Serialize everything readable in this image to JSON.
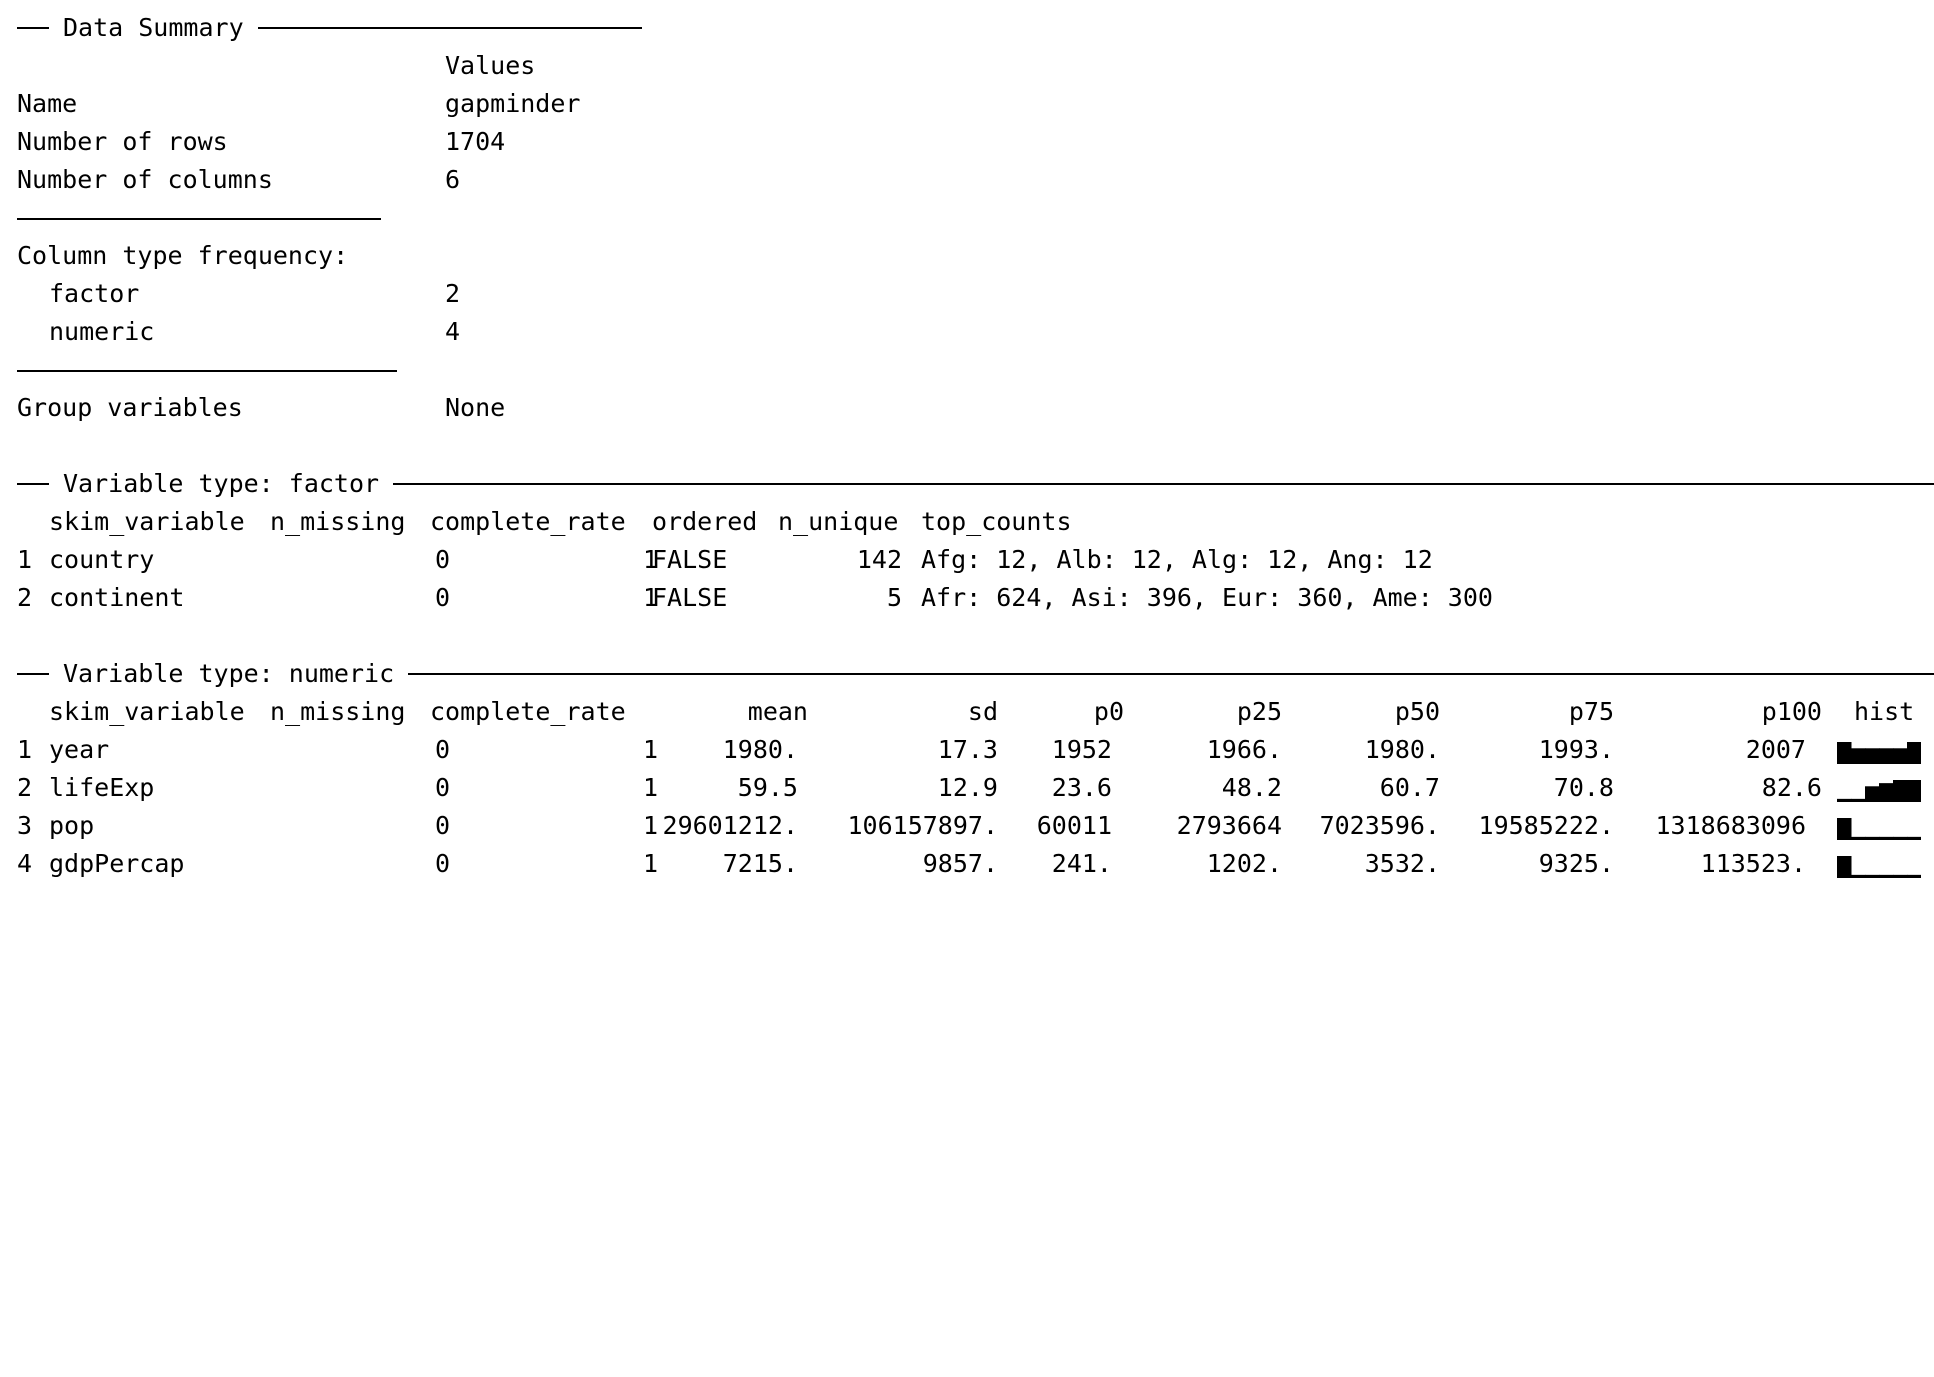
{
  "summary": {
    "title": "Data Summary",
    "values_header": "Values",
    "rows": [
      {
        "label": "Name",
        "value": "gapminder"
      },
      {
        "label": "Number of rows",
        "value": "1704"
      },
      {
        "label": "Number of columns",
        "value": "6"
      }
    ],
    "freq_title": "Column type frequency:",
    "freq": [
      {
        "label": "factor",
        "value": "2"
      },
      {
        "label": "numeric",
        "value": "4"
      }
    ],
    "group": {
      "label": "Group variables",
      "value": "None"
    }
  },
  "factor": {
    "title": "Variable type: factor",
    "headers": [
      "skim_variable",
      "n_missing",
      "complete_rate",
      "ordered",
      "n_unique",
      "top_counts"
    ],
    "rows": [
      {
        "idx": "1",
        "skim_variable": "country",
        "n_missing": "0",
        "complete_rate": "1",
        "ordered": "FALSE",
        "n_unique": "142",
        "top_counts": "Afg: 12, Alb: 12, Alg: 12, Ang: 12"
      },
      {
        "idx": "2",
        "skim_variable": "continent",
        "n_missing": "0",
        "complete_rate": "1",
        "ordered": "FALSE",
        "n_unique": "5",
        "top_counts": "Afr: 624, Asi: 396, Eur: 360, Ame: 300"
      }
    ]
  },
  "numeric": {
    "title": "Variable type: numeric",
    "headers": [
      "skim_variable",
      "n_missing",
      "complete_rate",
      "mean",
      "sd",
      "p0",
      "p25",
      "p50",
      "p75",
      "p100",
      "hist"
    ],
    "rows": [
      {
        "idx": "1",
        "skim_variable": "year",
        "n_missing": "0",
        "complete_rate": "1",
        "mean": "1980.",
        "sd": "17.3",
        "p0": "1952",
        "p25": "1966.",
        "p50": "1980.",
        "p75": "1993.",
        "p100": "2007",
        "hist": [
          7,
          5,
          5,
          5,
          5,
          7
        ],
        "hist_text": "▇▅▅▅▅▇"
      },
      {
        "idx": "2",
        "skim_variable": "lifeExp",
        "n_missing": "0",
        "complete_rate": "1",
        "mean": "59.5",
        "sd": "12.9",
        "p0": "23.6",
        "p25": "48.2",
        "p50": "60.7",
        "p75": "70.8",
        "p100": "82.6",
        "hist": [
          1,
          1,
          5,
          6,
          7,
          7
        ],
        "hist_text": "▁▁▅▆▇▇"
      },
      {
        "idx": "3",
        "skim_variable": "pop",
        "n_missing": "0",
        "complete_rate": "1",
        "mean": "29601212.",
        "sd": "106157897.",
        "p0": "60011",
        "p25": "2793664",
        "p50": "7023596.",
        "p75": "19585222.",
        "p100": "1318683096",
        "hist": [
          7,
          1,
          1,
          1,
          1,
          1
        ],
        "hist_text": "▇▁▁▁▁▁"
      },
      {
        "idx": "4",
        "skim_variable": "gdpPercap",
        "n_missing": "0",
        "complete_rate": "1",
        "mean": "7215.",
        "sd": "9857.",
        "p0": "241.",
        "p25": "1202.",
        "p50": "3532.",
        "p75": "9325.",
        "p100": "113523.",
        "hist": [
          7,
          1,
          1,
          1,
          1,
          1
        ],
        "hist_text": "▇▁▁▁▁▁"
      }
    ]
  }
}
